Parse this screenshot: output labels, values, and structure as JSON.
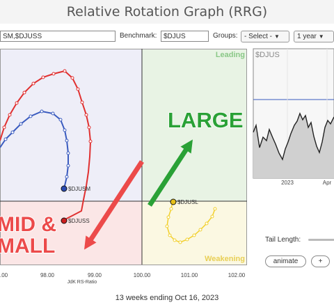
{
  "title": "Relative Rotation Graph (RRG)",
  "toolbar": {
    "symbols_value": "SM,$DJUSS",
    "benchmark_label": "Benchmark:",
    "benchmark_value": "$DJUS",
    "groups_label": "Groups:",
    "groups_value": "- Select -",
    "period_value": "1 year"
  },
  "quadrants": {
    "leading": "Leading",
    "weakening": "Weakening",
    "colors": {
      "leading": "#e8f3e4",
      "improving": "#eeeef8",
      "lagging": "#fbe6e6",
      "weakening": "#fbf8e2"
    }
  },
  "x_axis": {
    "ticks": [
      "98.00",
      "99.00",
      "100.00",
      "101.00",
      "102.00"
    ],
    "partial_tick": ".00",
    "label": "JdK RS-Ratio"
  },
  "series": [
    {
      "name": "$DJUSM",
      "color": "#3a5bbf",
      "head_color": "#2a4ab0"
    },
    {
      "name": "$DJUSS",
      "color": "#e03030",
      "head_color": "#cc1f1f"
    },
    {
      "name": "$DJUSL",
      "color": "#f2cf2a",
      "head_color": "#e6c01a"
    }
  ],
  "annotations": {
    "large": "LARGE",
    "mid_line1": "MID &",
    "mid_line2": "MALL"
  },
  "mini_chart": {
    "symbol": "$DJUS",
    "x_labels": [
      "2023",
      "Apr"
    ]
  },
  "controls": {
    "tail_length_label": "Tail Length:",
    "animate_label": "animate",
    "plus_label": "+"
  },
  "footer": "13 weeks ending Oct 16, 2023"
}
